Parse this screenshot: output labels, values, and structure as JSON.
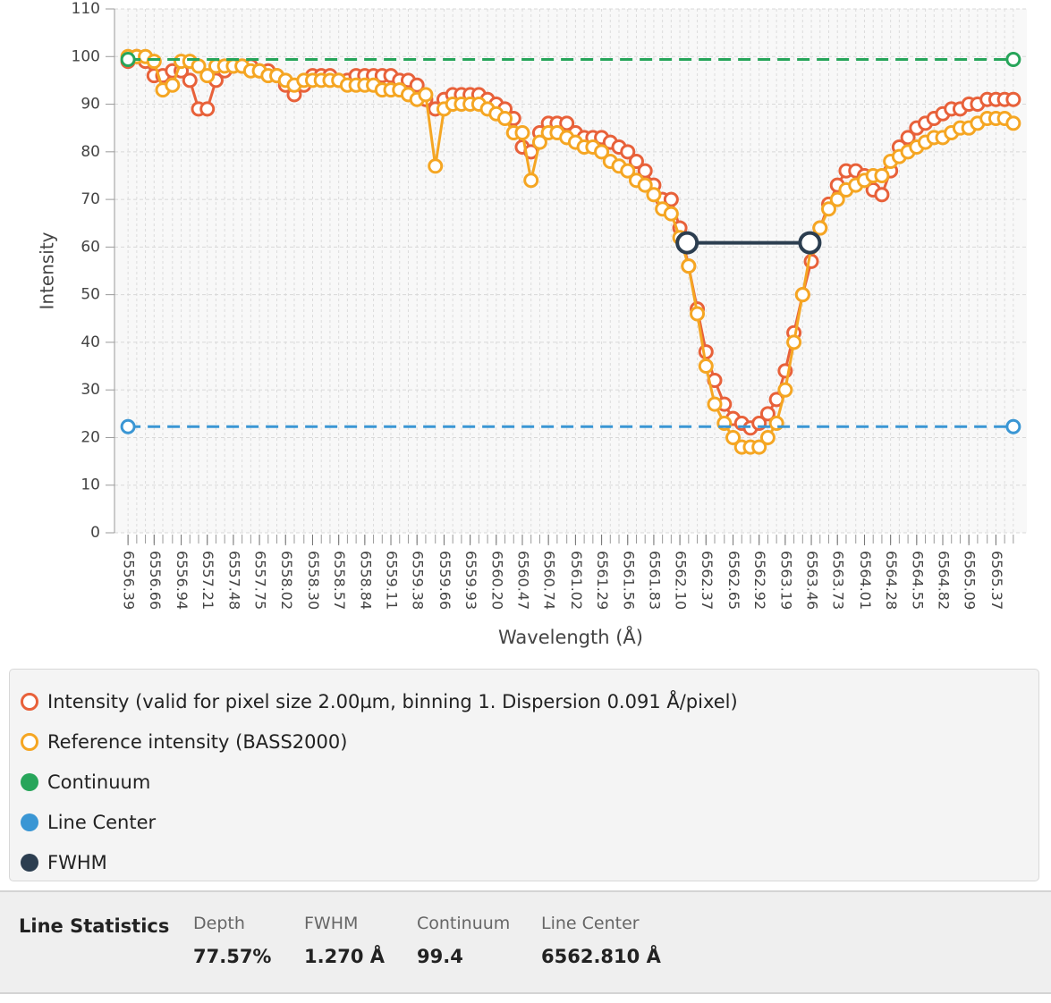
{
  "chart_data": {
    "type": "line",
    "x_label": "Wavelength (Å)",
    "y_label": "Intensity",
    "xlim": [
      6556.25,
      6565.69
    ],
    "ylim": [
      0,
      110
    ],
    "yticks": [
      0,
      10,
      20,
      30,
      40,
      50,
      60,
      70,
      80,
      90,
      100,
      110
    ],
    "xticks": [
      6556.39,
      6556.66,
      6556.94,
      6557.21,
      6557.48,
      6557.75,
      6558.02,
      {
        "value": 6558.3,
        "label": "6558.30"
      },
      6558.57,
      6558.84,
      6559.11,
      6559.38,
      6559.66,
      6559.93,
      {
        "value": 6560.2,
        "label": "6560.20"
      },
      6560.47,
      6560.74,
      6561.02,
      6561.29,
      6561.56,
      6561.83,
      {
        "value": 6562.1,
        "label": "6562.10"
      },
      6562.37,
      6562.65,
      6562.92,
      6563.19,
      6563.46,
      6563.73,
      6564.01,
      6564.28,
      6564.55,
      6564.82,
      6565.09,
      6565.37
    ],
    "grid": true,
    "x": [
      6556.39,
      6556.48,
      6556.57,
      6556.66,
      6556.75,
      6556.85,
      6556.94,
      6557.03,
      6557.12,
      6557.21,
      6557.3,
      6557.39,
      6557.48,
      6557.57,
      6557.66,
      6557.75,
      6557.84,
      6557.93,
      6558.02,
      6558.11,
      6558.21,
      6558.3,
      6558.39,
      6558.48,
      6558.57,
      6558.66,
      6558.75,
      6558.84,
      6558.93,
      6559.02,
      6559.11,
      6559.2,
      6559.29,
      6559.38,
      6559.47,
      6559.57,
      6559.66,
      6559.75,
      6559.84,
      6559.93,
      6560.02,
      6560.11,
      6560.2,
      6560.29,
      6560.38,
      6560.47,
      6560.56,
      6560.65,
      6560.74,
      6560.83,
      6560.93,
      6561.02,
      6561.11,
      6561.2,
      6561.29,
      6561.38,
      6561.47,
      6561.56,
      6561.65,
      6561.74,
      6561.83,
      6561.92,
      6562.01,
      6562.1,
      6562.19,
      6562.28,
      6562.37,
      6562.46,
      6562.56,
      6562.65,
      6562.74,
      6562.83,
      6562.92,
      6563.01,
      6563.1,
      6563.19,
      6563.28,
      6563.37,
      6563.46,
      6563.55,
      6563.64,
      6563.73,
      6563.82,
      6563.92,
      6564.01,
      6564.1,
      6564.19,
      6564.28,
      6564.37,
      6564.46,
      6564.55,
      6564.64,
      6564.73,
      6564.82,
      6564.91,
      6565.0,
      6565.09,
      6565.18,
      6565.28,
      6565.37,
      6565.46,
      6565.55
    ],
    "series": [
      {
        "name": "Intensity (valid for pixel size 2.00µm, binning 1. Dispersion 0.091  Å/pixel)",
        "color": "#e8613a",
        "marker": "ring",
        "legend_symbol": "ring",
        "values": [
          99,
          100,
          99,
          96,
          96,
          97,
          97,
          95,
          89,
          89,
          95,
          97,
          98,
          98,
          98,
          97,
          97,
          96,
          94,
          92,
          94,
          96,
          96,
          96,
          95,
          95,
          96,
          96,
          96,
          96,
          96,
          95,
          95,
          94,
          91,
          89,
          91,
          92,
          92,
          92,
          92,
          91,
          90,
          89,
          87,
          81,
          80,
          84,
          86,
          86,
          86,
          84,
          83,
          83,
          83,
          82,
          81,
          80,
          78,
          76,
          73,
          70,
          70,
          64,
          56,
          47,
          38,
          32,
          27,
          24,
          23,
          22,
          23,
          25,
          28,
          34,
          42,
          50,
          57,
          64,
          69,
          73,
          76,
          76,
          75,
          72,
          71,
          76,
          81,
          83,
          85,
          86,
          87,
          88,
          89,
          89,
          90,
          90,
          91,
          91,
          91,
          91
        ]
      },
      {
        "name": "Reference intensity (BASS2000)",
        "color": "#f5a623",
        "marker": "ring",
        "legend_symbol": "ring",
        "values": [
          100,
          100,
          100,
          99,
          93,
          94,
          99,
          99,
          98,
          96,
          98,
          98,
          98,
          98,
          97,
          97,
          96,
          96,
          95,
          94,
          95,
          95,
          95,
          95,
          95,
          94,
          94,
          94,
          94,
          93,
          93,
          93,
          92,
          91,
          92,
          77,
          89,
          90,
          90,
          90,
          90,
          89,
          88,
          87,
          84,
          84,
          74,
          82,
          84,
          84,
          83,
          82,
          81,
          81,
          80,
          78,
          77,
          76,
          74,
          73,
          71,
          68,
          67,
          62,
          56,
          46,
          35,
          27,
          23,
          20,
          18,
          18,
          18,
          20,
          23,
          30,
          40,
          50,
          60,
          64,
          68,
          70,
          72,
          73,
          74,
          75,
          75,
          78,
          79,
          80,
          81,
          82,
          83,
          83,
          84,
          85,
          85,
          86,
          87,
          87,
          87,
          86
        ]
      },
      {
        "name": "Continuum",
        "color": "#27a55a",
        "marker": "ring",
        "dashed": true,
        "legend_symbol": "dot",
        "x": [
          6556.39,
          6565.55
        ],
        "values": [
          99.4,
          99.4
        ]
      },
      {
        "name": "Line Center",
        "color": "#3a96d4",
        "marker": "ring",
        "dashed": true,
        "legend_symbol": "dot",
        "x": [
          6556.39,
          6565.55
        ],
        "values": [
          22.3,
          22.3
        ]
      },
      {
        "name": "FWHM",
        "color": "#2c3e50",
        "marker": "ring-large",
        "legend_symbol": "dot",
        "x": [
          6562.175,
          6563.445
        ],
        "values": [
          60.9,
          60.9
        ]
      }
    ]
  },
  "line_statistics": {
    "title": "Line Statistics",
    "items": [
      {
        "label": "Depth",
        "value": "77.57%"
      },
      {
        "label": "FWHM",
        "value": "1.270 Å"
      },
      {
        "label": "Continuum",
        "value": "99.4"
      },
      {
        "label": "Line Center",
        "value": "6562.810 Å"
      }
    ]
  }
}
